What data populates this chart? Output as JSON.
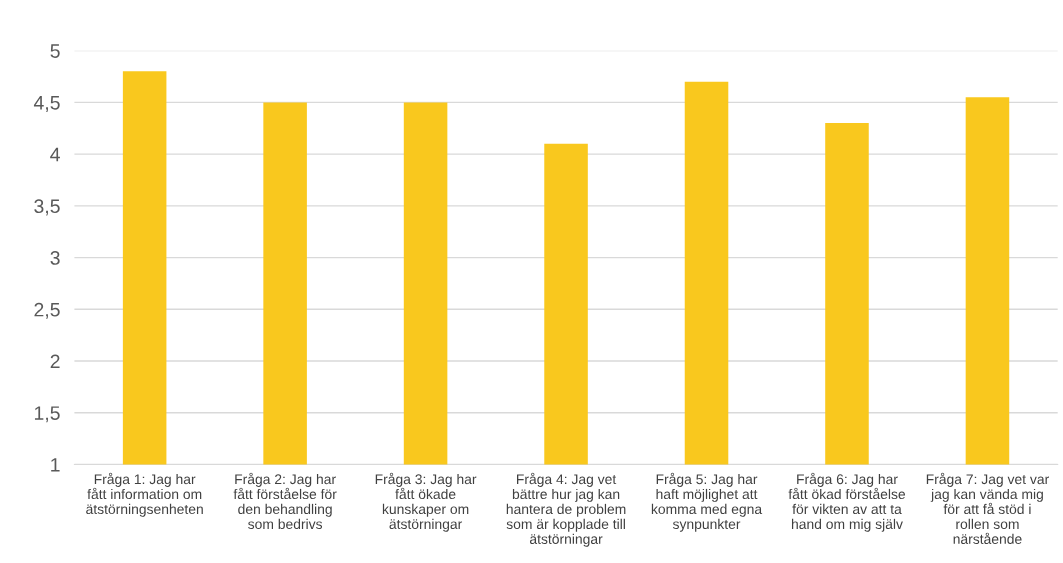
{
  "chart_data": {
    "type": "bar",
    "categories": [
      "Fråga 1: Jag har\nfått information om\nätstörningsenheten",
      "Fråga 2: Jag har\nfått förståelse för\nden behandling\nsom bedrivs",
      "Fråga 3: Jag har\nfått ökade\nkunskaper om\nätstörningar",
      "Fråga 4: Jag vet\nbättre hur jag kan\nhantera de problem\nsom är kopplade till\nätstörningar",
      "Fråga 5: Jag har\nhaft möjlighet att\nkomma med egna\nsynpunkter",
      "Fråga 6: Jag har\nfått ökad förståelse\nför vikten av att ta\nhand om mig själv",
      "Fråga 7: Jag vet var\njag kan vända mig\nför att få stöd i\nrollen som\nnärstående"
    ],
    "values": [
      4.8,
      4.5,
      4.5,
      4.1,
      4.7,
      4.3,
      4.55
    ],
    "color": "#f9c81e",
    "ylim": [
      1,
      5
    ],
    "yticks": [
      1,
      {
        "value": 1.5,
        "label": "1,5"
      },
      2,
      {
        "value": 2.5,
        "label": "2,5"
      },
      3,
      {
        "value": 3.5,
        "label": "3,5"
      },
      4,
      {
        "value": 4.5,
        "label": "4,5"
      },
      5
    ],
    "grid": "y"
  }
}
